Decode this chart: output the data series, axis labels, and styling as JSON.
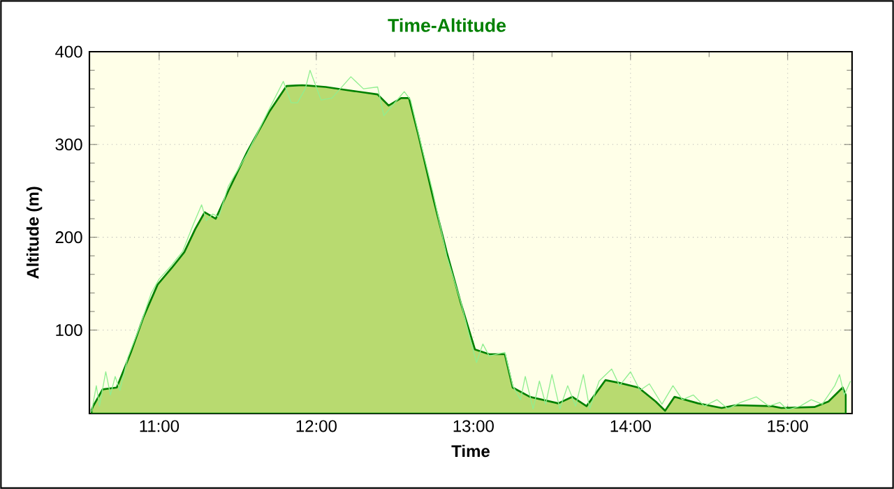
{
  "chart_data": {
    "type": "area",
    "title": "Time-Altitude",
    "xlabel": "Time",
    "ylabel": "Altitude (m)",
    "xlim": [
      10.556,
      15.41
    ],
    "ylim": [
      10,
      400
    ],
    "xticks": [
      {
        "value": 11,
        "label": "11:00"
      },
      {
        "value": 12,
        "label": "12:00"
      },
      {
        "value": 13,
        "label": "13:00"
      },
      {
        "value": 14,
        "label": "14:00"
      },
      {
        "value": 15,
        "label": "15:00"
      }
    ],
    "yticks": [
      100,
      200,
      300,
      400
    ],
    "grid": true,
    "series": [
      {
        "color": "#008000",
        "x": [
          10.57,
          10.58,
          10.64,
          10.73,
          10.82,
          10.9,
          10.99,
          11.08,
          11.16,
          11.23,
          11.29,
          11.36,
          11.44,
          11.56,
          11.7,
          11.81,
          11.91,
          12.06,
          12.18,
          12.39,
          12.46,
          12.54,
          12.59,
          12.65,
          12.74,
          12.83,
          12.92,
          13.01,
          13.1,
          13.2,
          13.25,
          13.36,
          13.54,
          13.63,
          13.72,
          13.84,
          13.93,
          14.05,
          14.16,
          14.22,
          14.28,
          14.43,
          14.58,
          14.67,
          14.9,
          14.96,
          15.17,
          15.26,
          15.35,
          15.37
        ],
        "values": [
          14,
          18,
          36,
          38,
          76,
          114,
          149,
          167,
          184,
          209,
          227,
          220,
          250,
          292,
          335,
          363,
          364,
          362,
          359,
          354,
          342,
          350,
          350,
          310,
          245,
          184,
          129,
          79,
          74,
          74,
          38,
          28,
          21,
          28,
          18,
          46,
          43,
          38,
          23,
          13,
          28,
          21,
          16,
          19,
          18,
          16,
          17,
          23,
          38,
          30
        ]
      },
      {
        "type": "line",
        "color": "#90ee90",
        "x": [
          10.57,
          10.6,
          10.62,
          10.66,
          10.69,
          10.72,
          10.75,
          10.8,
          10.88,
          10.95,
          11.0,
          11.08,
          11.15,
          11.22,
          11.27,
          11.3,
          11.34,
          11.38,
          11.44,
          11.56,
          11.7,
          11.79,
          11.84,
          11.88,
          11.93,
          11.96,
          12.03,
          12.1,
          12.22,
          12.3,
          12.39,
          12.43,
          12.5,
          12.56,
          12.6,
          12.66,
          12.74,
          12.83,
          12.92,
          12.98,
          13.02,
          13.06,
          13.1,
          13.2,
          13.25,
          13.3,
          13.33,
          13.38,
          13.42,
          13.46,
          13.5,
          13.55,
          13.6,
          13.65,
          13.7,
          13.74,
          13.8,
          13.88,
          13.93,
          14.0,
          14.06,
          14.12,
          14.2,
          14.27,
          14.33,
          14.4,
          14.47,
          14.55,
          14.62,
          14.7,
          14.8,
          14.88,
          14.95,
          15.0,
          15.08,
          15.15,
          15.22,
          15.3,
          15.33,
          15.36,
          15.4
        ],
        "values": [
          12,
          40,
          18,
          55,
          30,
          50,
          35,
          70,
          105,
          140,
          155,
          170,
          185,
          215,
          235,
          218,
          225,
          222,
          255,
          290,
          338,
          368,
          345,
          345,
          360,
          380,
          348,
          350,
          373,
          360,
          362,
          331,
          345,
          357,
          348,
          305,
          250,
          180,
          130,
          90,
          65,
          85,
          72,
          76,
          40,
          25,
          50,
          15,
          45,
          20,
          52,
          15,
          40,
          18,
          52,
          15,
          45,
          58,
          40,
          55,
          35,
          42,
          20,
          40,
          25,
          30,
          18,
          25,
          15,
          22,
          28,
          18,
          22,
          14,
          18,
          25,
          20,
          40,
          52,
          30,
          45
        ]
      }
    ]
  }
}
